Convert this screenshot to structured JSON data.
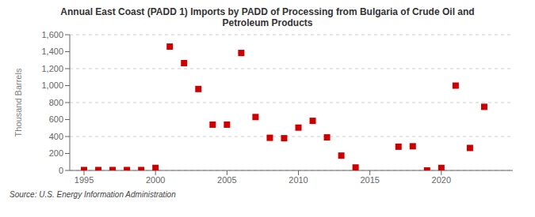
{
  "chart_data": {
    "type": "scatter",
    "title": "Annual East Coast (PADD 1) Imports by PADD of Processing from Bulgaria of Crude Oil and\nPetroleum Products",
    "ylabel": "Thousand Barrels",
    "annotations": [
      "Source: U.S. Energy Information Administration"
    ],
    "x": [
      1995,
      1996,
      1997,
      1998,
      1999,
      2000,
      2001,
      2002,
      2003,
      2004,
      2005,
      2006,
      2007,
      2008,
      2009,
      2010,
      2011,
      2012,
      2013,
      2014,
      2017,
      2018,
      2019,
      2020,
      2021,
      2022,
      2023
    ],
    "values": [
      5,
      5,
      5,
      5,
      5,
      30,
      1460,
      1265,
      960,
      540,
      540,
      1385,
      630,
      385,
      380,
      505,
      585,
      390,
      175,
      35,
      280,
      285,
      0,
      30,
      1000,
      265,
      750
    ],
    "color": "#cc0000",
    "marker": "square",
    "xlim": [
      1994,
      2025
    ],
    "xticks": [
      1995,
      2000,
      2005,
      2010,
      2015,
      2020
    ],
    "ylim": [
      0,
      1600
    ],
    "yticks": [
      0,
      200,
      400,
      600,
      800,
      {
        "value": 1000,
        "label": "1,000"
      },
      {
        "value": 1200,
        "label": "1,200"
      },
      {
        "value": 1400,
        "label": "1,400"
      },
      {
        "value": 1600,
        "label": "1,600"
      }
    ],
    "grid": "y"
  }
}
